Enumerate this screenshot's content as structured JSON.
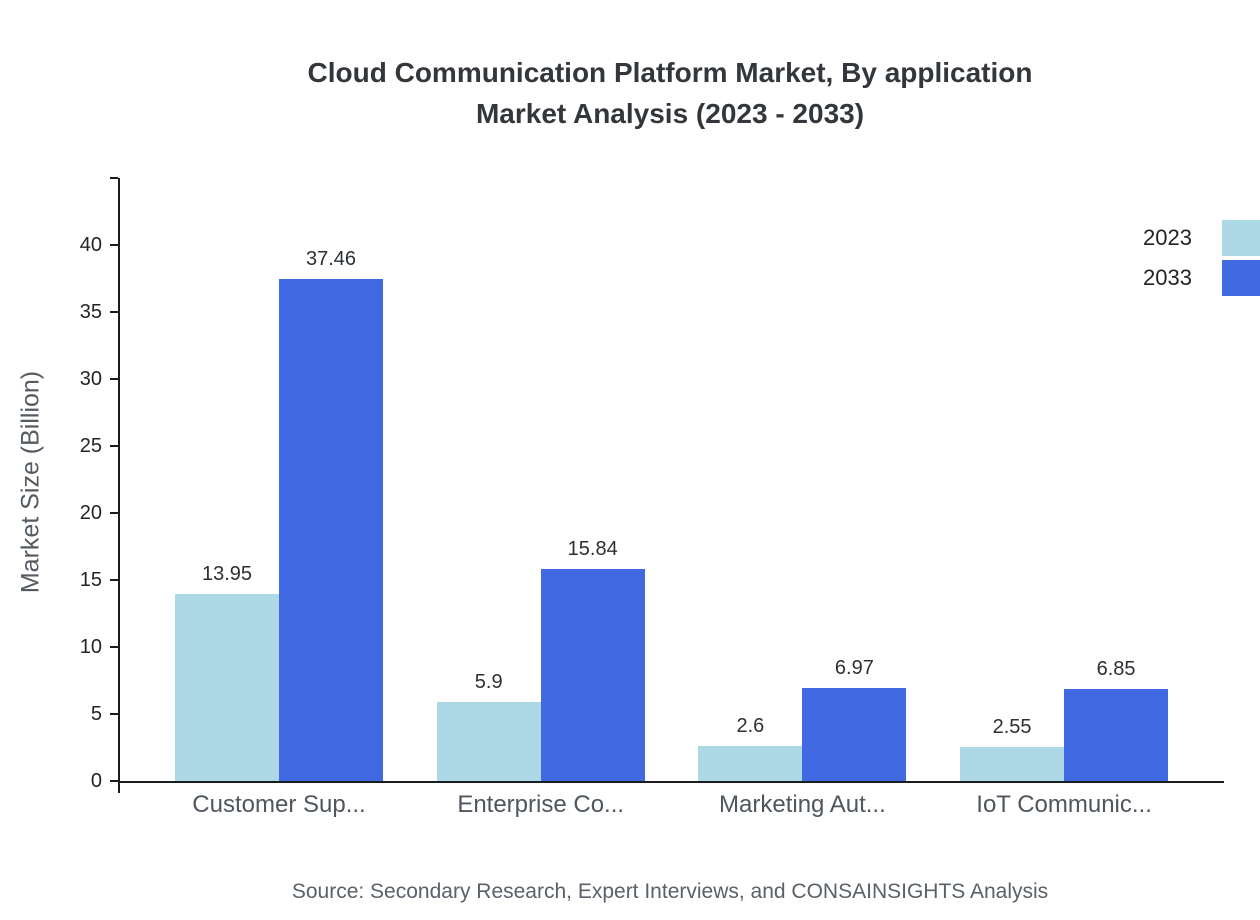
{
  "title": {
    "line1": "Cloud Communication Platform Market, By application",
    "line2": "Market Analysis (2023 - 2033)"
  },
  "source": "Source: Secondary Research, Expert Interviews, and CONSAINSIGHTS Analysis",
  "chart_data": {
    "type": "bar",
    "title": "Cloud Communication Platform Market, By application Market Analysis (2023 - 2033)",
    "categories": [
      "Customer Sup...",
      "Enterprise Co...",
      "Marketing Aut...",
      "IoT Communic..."
    ],
    "series": [
      {
        "name": "2023",
        "color": "#ADD8E6",
        "values": [
          13.95,
          5.9,
          2.6,
          2.55
        ]
      },
      {
        "name": "2033",
        "color": "#4169E1",
        "values": [
          37.46,
          15.84,
          6.97,
          6.85
        ]
      }
    ],
    "xlabel": "",
    "ylabel": "Market Size (Billion)",
    "ylim": [
      0,
      45
    ],
    "yticks": [
      0,
      5,
      10,
      15,
      20,
      25,
      30,
      35,
      40
    ],
    "grid": false,
    "legend_position": "top-right"
  }
}
